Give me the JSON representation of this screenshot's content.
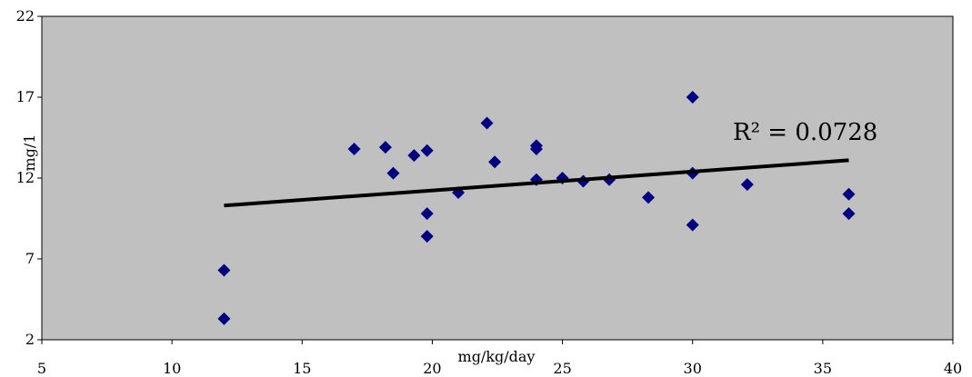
{
  "chart_data": {
    "type": "scatter",
    "title": "",
    "xlabel": "mg/kg/day",
    "ylabel": "mg/1",
    "xlim": [
      5,
      40
    ],
    "ylim": [
      2,
      22
    ],
    "x_ticks": [
      "5",
      "10",
      "15",
      "20",
      "25",
      "30",
      "35",
      "40"
    ],
    "y_ticks": [
      "2",
      "7",
      "12",
      "17",
      "22"
    ],
    "grid": false,
    "legend": "none",
    "colors": {
      "plot_bg": "#c0c0c0",
      "marker": "#000080",
      "trendline": "#000000"
    },
    "series": [
      {
        "marker": "diamond",
        "points": [
          [
            12,
            6.3
          ],
          [
            12,
            3.3
          ],
          [
            17,
            13.8
          ],
          [
            18.2,
            13.9
          ],
          [
            18.5,
            12.3
          ],
          [
            19.3,
            13.4
          ],
          [
            19.8,
            13.7
          ],
          [
            19.8,
            9.8
          ],
          [
            19.8,
            8.4
          ],
          [
            21,
            11.1
          ],
          [
            22.1,
            15.4
          ],
          [
            22.4,
            13.0
          ],
          [
            24,
            14.0
          ],
          [
            24,
            13.8
          ],
          [
            24,
            11.9
          ],
          [
            25,
            12.0
          ],
          [
            25.8,
            11.8
          ],
          [
            26.8,
            11.9
          ],
          [
            28.3,
            10.8
          ],
          [
            30,
            17.0
          ],
          [
            30,
            12.3
          ],
          [
            30,
            9.1
          ],
          [
            32.1,
            11.6
          ],
          [
            36,
            11.0
          ],
          [
            36,
            9.8
          ]
        ]
      }
    ],
    "trendline": {
      "x": [
        12,
        36
      ],
      "y": [
        10.3,
        13.1
      ],
      "label": "R² = 0.0728"
    }
  }
}
